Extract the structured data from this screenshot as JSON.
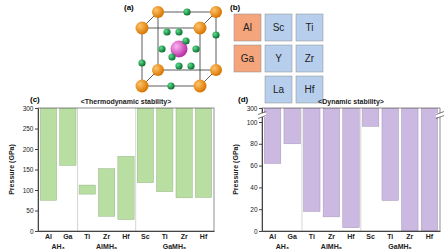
{
  "diagram": {
    "label": "(a)"
  },
  "table": {
    "label": "(b)",
    "rows": [
      [
        "Al",
        "Sc",
        "Ti"
      ],
      [
        "Ga",
        "Y",
        "Zr"
      ],
      [
        null,
        "La",
        "Hf"
      ]
    ],
    "colors": [
      [
        "#f4a57c",
        "#b7cfec",
        "#b7cfec"
      ],
      [
        "#f4a57c",
        "#b7cfec",
        "#b7cfec"
      ],
      [
        null,
        "#b7cfec",
        "#b7cfec"
      ]
    ]
  },
  "chart_data": [
    {
      "type": "bar",
      "panel_label": "(c)",
      "title": "<Thermodynamic stability>",
      "y_label": "Pressure (GPa)",
      "color": "#b9dea2",
      "ylim": [
        0,
        300
      ],
      "yticks": [
        0,
        50,
        100,
        150,
        200,
        250,
        300
      ],
      "groups": [
        {
          "label": "AH₃",
          "categories": [
            "Al",
            "Ga"
          ],
          "low": [
            75,
            160
          ],
          "values": [
            300,
            300
          ]
        },
        {
          "label": "AlMH₆",
          "categories": [
            "Ti",
            "Zr",
            "Hf"
          ],
          "low": [
            90,
            36,
            28
          ],
          "values": [
            112,
            152,
            182
          ]
        },
        {
          "label": "GaMH₆",
          "categories": [
            "Sc",
            "Ti",
            "Zr",
            "Hf"
          ],
          "low": [
            118,
            96,
            81,
            82
          ],
          "values": [
            300,
            300,
            300,
            300
          ]
        }
      ]
    },
    {
      "type": "bar",
      "panel_label": "(d)",
      "title": "<Dynamic stability>",
      "y_label": "Pressure (GPa)",
      "color": "#cbb9e2",
      "ylim": [
        0,
        300
      ],
      "yticks": [
        0,
        20,
        40,
        60,
        80,
        100,
        300
      ],
      "groups": [
        {
          "label": "AH₃",
          "categories": [
            "Al",
            "Ga"
          ],
          "low": [
            62,
            80
          ],
          "values": [
            300,
            300
          ]
        },
        {
          "label": "AlMH₆",
          "categories": [
            "Ti",
            "Zr",
            "Hf"
          ],
          "low": [
            18,
            13,
            3
          ],
          "values": [
            300,
            300,
            300
          ]
        },
        {
          "label": "GaMH₆",
          "categories": [
            "Sc",
            "Ti",
            "Zr",
            "Hf"
          ],
          "low": [
            96,
            28,
            0,
            0
          ],
          "values": [
            300,
            300,
            300,
            300
          ]
        }
      ]
    }
  ]
}
